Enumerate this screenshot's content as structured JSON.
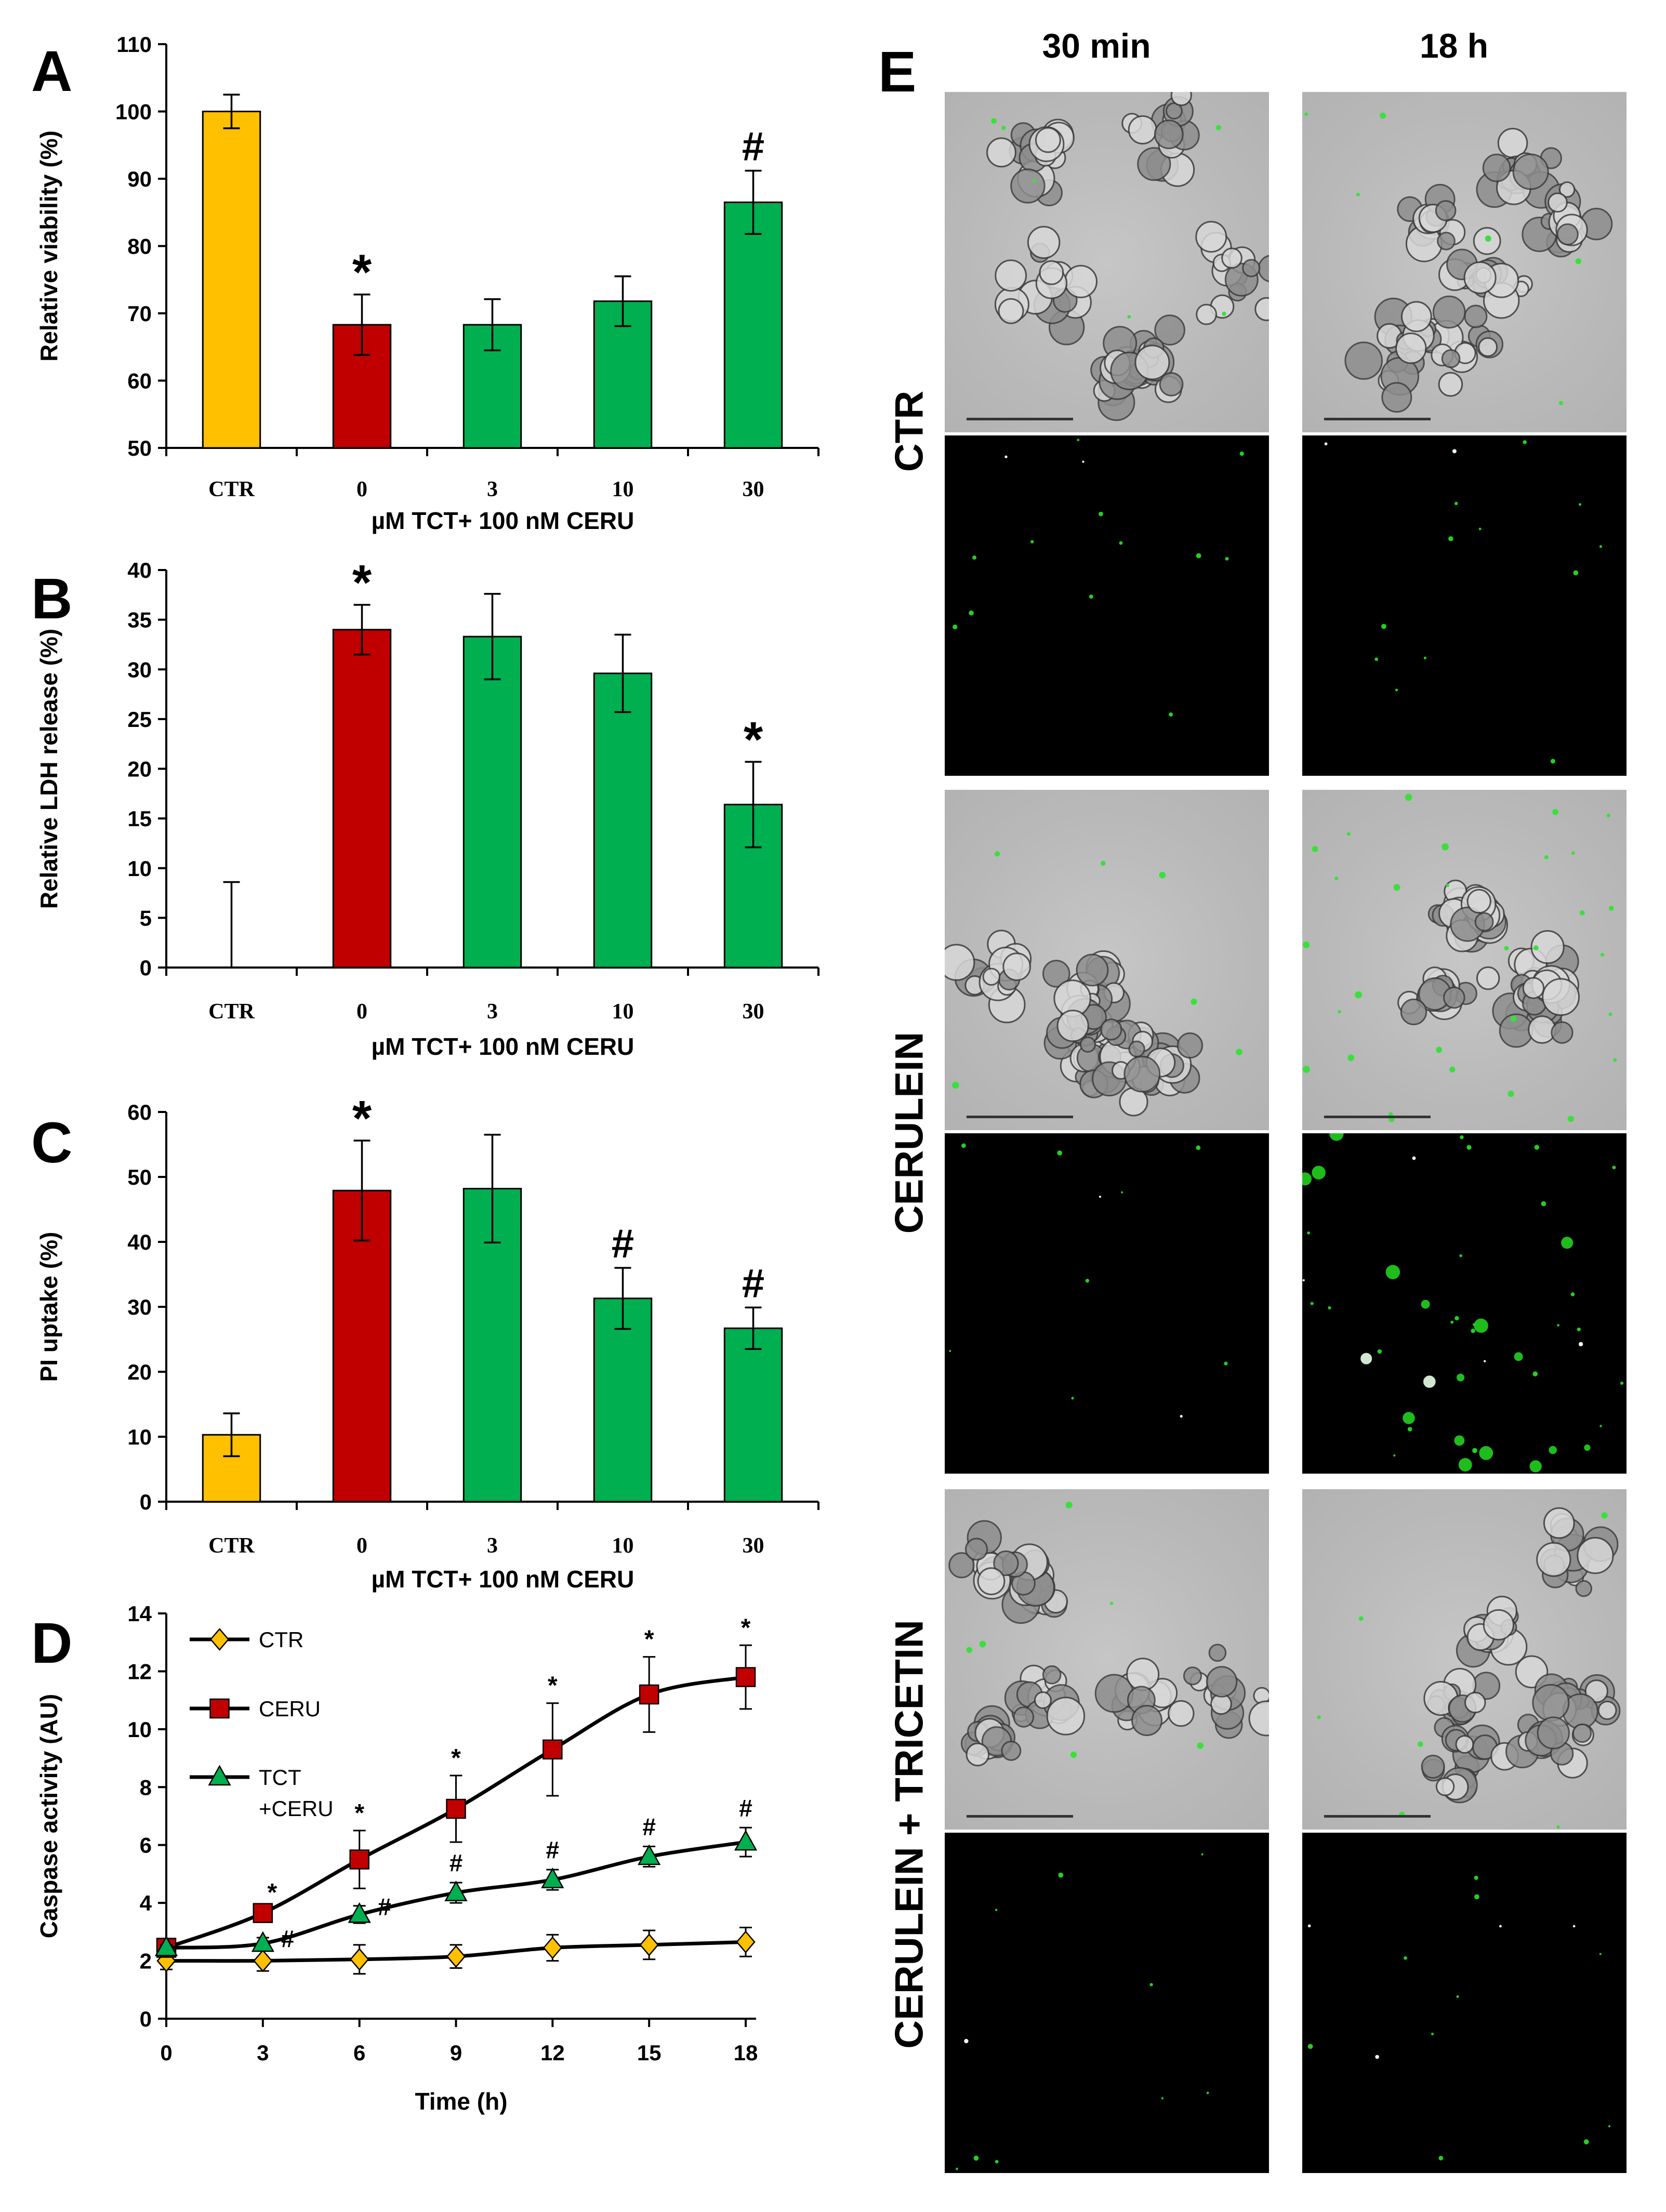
{
  "chart_data": [
    {
      "panel": "A",
      "type": "bar",
      "ylabel": "Relative viability (%)",
      "xlabel": "µM TCT+ 100 nM CERU",
      "categories": [
        "CTR",
        "0",
        "3",
        "10",
        "30"
      ],
      "values": [
        100,
        68.3,
        68.3,
        71.8,
        86.5
      ],
      "errors": [
        2.5,
        4.5,
        3.8,
        3.7,
        4.7
      ],
      "significance": [
        "",
        "*",
        "",
        "",
        "#"
      ],
      "colors": [
        "#FFC000",
        "#C00000",
        "#00B050",
        "#00B050",
        "#00B050"
      ],
      "ylim": [
        50,
        110
      ],
      "yticks": [
        50,
        60,
        70,
        80,
        90,
        100,
        110
      ]
    },
    {
      "panel": "B",
      "type": "bar",
      "ylabel": "Relative LDH release (%)",
      "xlabel": "µM TCT+ 100 nM CERU",
      "categories": [
        "CTR",
        "0",
        "3",
        "10",
        "30"
      ],
      "values": [
        0,
        34,
        33.3,
        29.6,
        16.4
      ],
      "errors": [
        8.6,
        2.5,
        4.3,
        3.9,
        4.3
      ],
      "significance": [
        "",
        "*",
        "",
        "",
        "*"
      ],
      "colors": [
        "#FFC000",
        "#C00000",
        "#00B050",
        "#00B050",
        "#00B050"
      ],
      "ylim": [
        0,
        40
      ],
      "yticks": [
        0,
        5,
        10,
        15,
        20,
        25,
        30,
        35,
        40
      ]
    },
    {
      "panel": "C",
      "type": "bar",
      "ylabel": "PI uptake (%)",
      "xlabel": "µM TCT+ 100 nM CERU",
      "categories": [
        "CTR",
        "0",
        "3",
        "10",
        "30"
      ],
      "values": [
        10.3,
        47.9,
        48.2,
        31.3,
        26.7
      ],
      "errors": [
        3.3,
        7.7,
        8.3,
        4.7,
        3.2
      ],
      "significance": [
        "",
        "*",
        "",
        "#",
        "#"
      ],
      "colors": [
        "#FFC000",
        "#C00000",
        "#00B050",
        "#00B050",
        "#00B050"
      ],
      "ylim": [
        0,
        60
      ],
      "yticks": [
        0,
        10,
        20,
        30,
        40,
        50,
        60
      ]
    },
    {
      "panel": "D",
      "type": "line",
      "ylabel": "Caspase activity (AU)",
      "xlabel": "Time (h)",
      "x": [
        0,
        3,
        6,
        9,
        12,
        15,
        18
      ],
      "xlim": [
        0,
        18
      ],
      "xticks": [
        0,
        3,
        6,
        9,
        12,
        15,
        18
      ],
      "ylim": [
        0,
        14
      ],
      "yticks": [
        0,
        2,
        4,
        6,
        8,
        10,
        12,
        14
      ],
      "legend_position": "top-left",
      "series": [
        {
          "name": "CTR",
          "values": [
            2.0,
            2.0,
            2.05,
            2.15,
            2.45,
            2.55,
            2.65
          ],
          "errors": [
            0.3,
            0.35,
            0.5,
            0.4,
            0.45,
            0.5,
            0.5
          ],
          "marker": "diamond",
          "color": "#FFC000",
          "significance": [
            "",
            "",
            "",
            "",
            "",
            "",
            ""
          ]
        },
        {
          "name": "CERU",
          "values": [
            2.45,
            3.65,
            5.5,
            7.25,
            9.3,
            11.2,
            11.8
          ],
          "errors": [
            0.1,
            0.1,
            1.0,
            1.15,
            1.6,
            1.3,
            1.1
          ],
          "marker": "square",
          "color": "#C00000",
          "significance": [
            "",
            "*",
            "*",
            "*",
            "*",
            "*",
            "*"
          ]
        },
        {
          "name": "TCT\n+CERU",
          "values": [
            2.45,
            2.6,
            3.6,
            4.35,
            4.8,
            5.6,
            6.1
          ],
          "errors": [
            0.1,
            0.2,
            0.3,
            0.35,
            0.35,
            0.35,
            0.5
          ],
          "marker": "triangle",
          "color": "#00B050",
          "significance": [
            "",
            "#",
            "#",
            "#",
            "#",
            "#",
            "#"
          ]
        }
      ]
    }
  ],
  "panel_letters": [
    "A",
    "B",
    "C",
    "D",
    "E"
  ],
  "panel_e": {
    "columns": [
      "30 min",
      "18 h"
    ],
    "rows": [
      "CTR",
      "CERULEIN",
      "CERULEIN + TRICETIN"
    ]
  }
}
